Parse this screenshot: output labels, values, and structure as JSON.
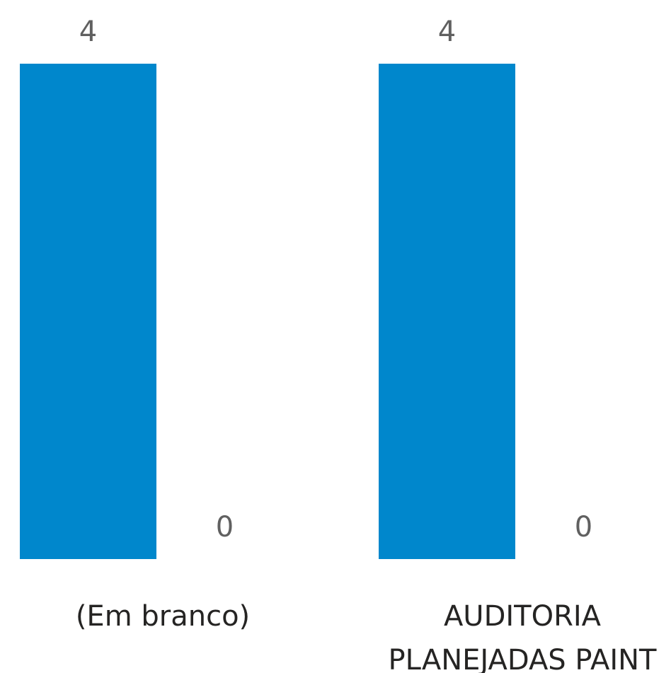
{
  "chart_data": {
    "type": "bar",
    "categories": [
      "(Em branco)",
      "AUDITORIA PLANEJADAS PAINT"
    ],
    "category_lines": [
      [
        "(Em branco)"
      ],
      [
        "AUDITORIA",
        "PLANEJADAS PAINT"
      ]
    ],
    "series": [
      {
        "values": [
          4,
          4
        ],
        "color": "#0087CC"
      },
      {
        "values": [
          0,
          0
        ],
        "color": "#0087CC"
      }
    ],
    "data_labels": true,
    "ylim": [
      0,
      4
    ],
    "grid": false,
    "legend": "none",
    "title": "",
    "xlabel": "",
    "ylabel": ""
  }
}
